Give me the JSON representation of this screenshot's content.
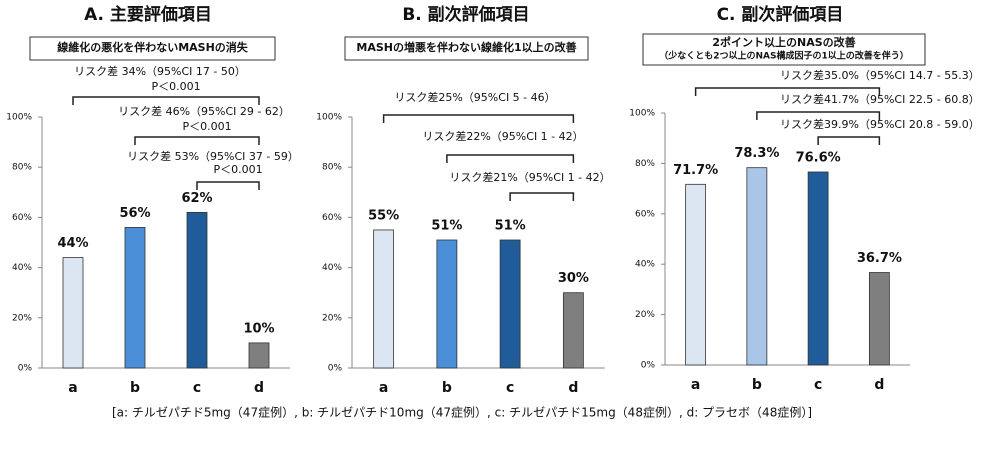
{
  "chart_data": [
    {
      "type": "bar",
      "title": "A. 主要評価項目",
      "subtitle": "線維化の悪化を伴わないMASHの消失",
      "categories": [
        "a",
        "b",
        "c",
        "d"
      ],
      "values": [
        44,
        56,
        62,
        10
      ],
      "value_labels": [
        "44%",
        "56%",
        "62%",
        "10%"
      ],
      "colors": [
        "#dce6f2",
        "#4a8fd8",
        "#1f5c99",
        "#7f7f7f"
      ],
      "ylim": [
        0,
        100
      ],
      "yticks": [
        {
          "value": 0,
          "label": "0%"
        },
        {
          "value": 20,
          "label": "20%"
        },
        {
          "value": 40,
          "label": "40%"
        },
        {
          "value": 60,
          "label": "60%"
        },
        {
          "value": 80,
          "label": "80%"
        },
        {
          "value": 100,
          "label": "100%"
        }
      ],
      "annotations": [
        {
          "text": "リスク差 34%（95%CI 17 - 50）",
          "p": "P＜0.001",
          "from": "a",
          "to": "d"
        },
        {
          "text": "リスク差 46%（95%CI 29 - 62）",
          "p": "P＜0.001",
          "from": "b",
          "to": "d"
        },
        {
          "text": "リスク差 53%（95%CI 37 - 59）",
          "p": "P＜0.001",
          "from": "c",
          "to": "d"
        }
      ]
    },
    {
      "type": "bar",
      "title": "B. 副次評価項目",
      "subtitle": "MASHの増悪を伴わない線維化1以上の改善",
      "categories": [
        "a",
        "b",
        "c",
        "d"
      ],
      "values": [
        55,
        51,
        51,
        30
      ],
      "value_labels": [
        "55%",
        "51%",
        "51%",
        "30%"
      ],
      "colors": [
        "#dce6f2",
        "#4a8fd8",
        "#1f5c99",
        "#7f7f7f"
      ],
      "ylim": [
        0,
        100
      ],
      "yticks": [
        {
          "value": 0,
          "label": "0%"
        },
        {
          "value": 20,
          "label": "20%"
        },
        {
          "value": 40,
          "label": "40%"
        },
        {
          "value": 60,
          "label": "60%"
        },
        {
          "value": 80,
          "label": "80%"
        },
        {
          "value": 100,
          "label": "100%"
        }
      ],
      "annotations": [
        {
          "text": "リスク差25%（95%CI 5 - 46）",
          "from": "a",
          "to": "d"
        },
        {
          "text": "リスク差22%（95%CI 1 - 42）",
          "from": "b",
          "to": "d"
        },
        {
          "text": "リスク差21%（95%CI 1 - 42）",
          "from": "c",
          "to": "d"
        }
      ]
    },
    {
      "type": "bar",
      "title": "C. 副次評価項目",
      "subtitle": "2ポイント以上のNASの改善",
      "subtitle_note": "（少なくとも2つ以上のNAS構成因子の1以上の改善を伴う）",
      "categories": [
        "a",
        "b",
        "c",
        "d"
      ],
      "values": [
        71.7,
        78.3,
        76.6,
        36.7
      ],
      "value_labels": [
        "71.7%",
        "78.3%",
        "76.6%",
        "36.7%"
      ],
      "colors": [
        "#dce6f2",
        "#a9c6e8",
        "#1f5c99",
        "#7f7f7f"
      ],
      "ylim": [
        0,
        100
      ],
      "yticks": [
        {
          "value": 0,
          "label": "0%"
        },
        {
          "value": 20,
          "label": "20%"
        },
        {
          "value": 40,
          "label": "40%"
        },
        {
          "value": 60,
          "label": "60%"
        },
        {
          "value": 80,
          "label": "80%"
        },
        {
          "value": 100,
          "label": "100%"
        }
      ],
      "annotations": [
        {
          "text": "リスク差35.0%（95%CI 14.7 - 55.3）",
          "from": "a",
          "to": "d"
        },
        {
          "text": "リスク差41.7%（95%CI 22.5 - 60.8）",
          "from": "b",
          "to": "d"
        },
        {
          "text": "リスク差39.9%（95%CI 20.8 - 59.0）",
          "from": "c",
          "to": "d"
        }
      ]
    }
  ],
  "caption": "[a: チルゼパチド5mg（47症例）, b: チルゼパチド10mg（47症例）, c: チルゼパチド15mg（48症例）, d: プラセボ（48症例）]"
}
